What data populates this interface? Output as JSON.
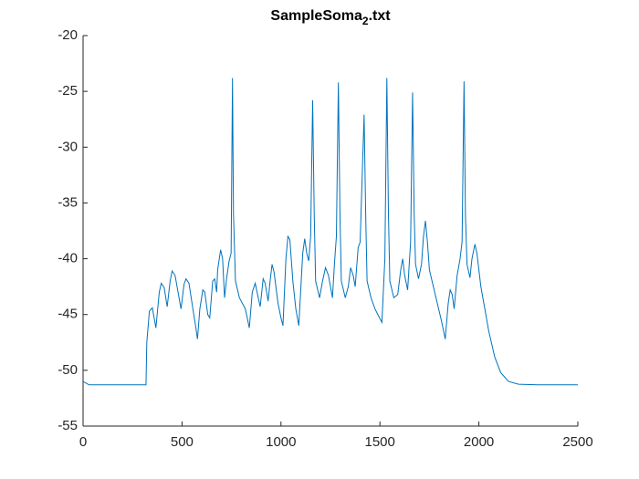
{
  "chart_data": {
    "type": "line",
    "title": [
      "SampleSoma",
      "2",
      ".txt"
    ],
    "x": [
      0,
      30,
      318,
      322,
      335,
      350,
      368,
      385,
      395,
      410,
      425,
      440,
      450,
      465,
      485,
      495,
      510,
      520,
      535,
      555,
      570,
      578,
      590,
      605,
      615,
      630,
      640,
      655,
      665,
      675,
      680,
      695,
      705,
      715,
      725,
      738,
      748,
      755,
      760,
      770,
      790,
      820,
      840,
      855,
      870,
      885,
      895,
      910,
      920,
      935,
      945,
      955,
      965,
      985,
      1000,
      1010,
      1025,
      1035,
      1045,
      1060,
      1075,
      1090,
      1110,
      1120,
      1130,
      1140,
      1150,
      1160,
      1168,
      1175,
      1195,
      1210,
      1225,
      1240,
      1260,
      1270,
      1280,
      1290,
      1298,
      1305,
      1325,
      1340,
      1352,
      1365,
      1375,
      1390,
      1400,
      1420,
      1428,
      1435,
      1455,
      1475,
      1495,
      1510,
      1525,
      1535,
      1543,
      1550,
      1570,
      1590,
      1605,
      1615,
      1625,
      1640,
      1655,
      1665,
      1673,
      1680,
      1695,
      1710,
      1720,
      1730,
      1740,
      1750,
      1770,
      1790,
      1810,
      1830,
      1845,
      1855,
      1865,
      1875,
      1890,
      1905,
      1915,
      1925,
      1932,
      1940,
      1955,
      1965,
      1980,
      1990,
      2010,
      2030,
      2050,
      2080,
      2110,
      2150,
      2200,
      2300,
      2500
    ],
    "series": [
      {
        "color": "#0072bd",
        "values": [
          -51.0,
          -51.3,
          -51.3,
          -47.5,
          -44.7,
          -44.4,
          -46.2,
          -43,
          -42.2,
          -42.6,
          -44.3,
          -42,
          -41.1,
          -41.5,
          -43.5,
          -44.5,
          -42.3,
          -41.8,
          -42.2,
          -44.5,
          -46.2,
          -47.2,
          -44.5,
          -42.8,
          -43,
          -45,
          -45.3,
          -42,
          -41.8,
          -43,
          -41,
          -39.2,
          -40,
          -43.5,
          -41.8,
          -40.2,
          -39.5,
          -23.8,
          -36,
          -42,
          -43.5,
          -44.5,
          -46.2,
          -43,
          -42.2,
          -43.5,
          -44.3,
          -41.8,
          -42.2,
          -43.8,
          -42,
          -40.5,
          -41.2,
          -44,
          -45.3,
          -46,
          -40,
          -38,
          -38.3,
          -42,
          -44.5,
          -46,
          -39.5,
          -38.2,
          -39.5,
          -40.2,
          -38,
          -25.8,
          -36,
          -42,
          -43.5,
          -42,
          -40.8,
          -41.5,
          -43.5,
          -40.5,
          -38,
          -24.2,
          -36,
          -42,
          -43.5,
          -42.5,
          -40.8,
          -41.5,
          -42.5,
          -39,
          -38.5,
          -27.1,
          -36,
          -42,
          -43.5,
          -44.5,
          -45.2,
          -45.7,
          -40,
          -23.8,
          -36,
          -42,
          -43.5,
          -43.2,
          -41,
          -40,
          -41.5,
          -42.8,
          -38.5,
          -25.1,
          -36,
          -40.5,
          -41.8,
          -40.5,
          -38,
          -36.6,
          -38.5,
          -41,
          -42.5,
          -44,
          -45.5,
          -47.2,
          -44,
          -42.8,
          -43.2,
          -44.5,
          -41.5,
          -40,
          -38.5,
          -24.1,
          -36,
          -40.5,
          -41.7,
          -40,
          -38.7,
          -39.5,
          -42.5,
          -44.5,
          -46.5,
          -48.8,
          -50.2,
          -51,
          -51.25,
          -51.3,
          -51.3
        ]
      }
    ],
    "xlim": [
      0,
      2500
    ],
    "xticks": [
      0,
      500,
      1000,
      1500,
      2000,
      2500
    ],
    "ylim": [
      -55,
      -20
    ],
    "yticks": [
      -55,
      -50,
      -45,
      -40,
      -35,
      -30,
      -25,
      -20
    ]
  }
}
